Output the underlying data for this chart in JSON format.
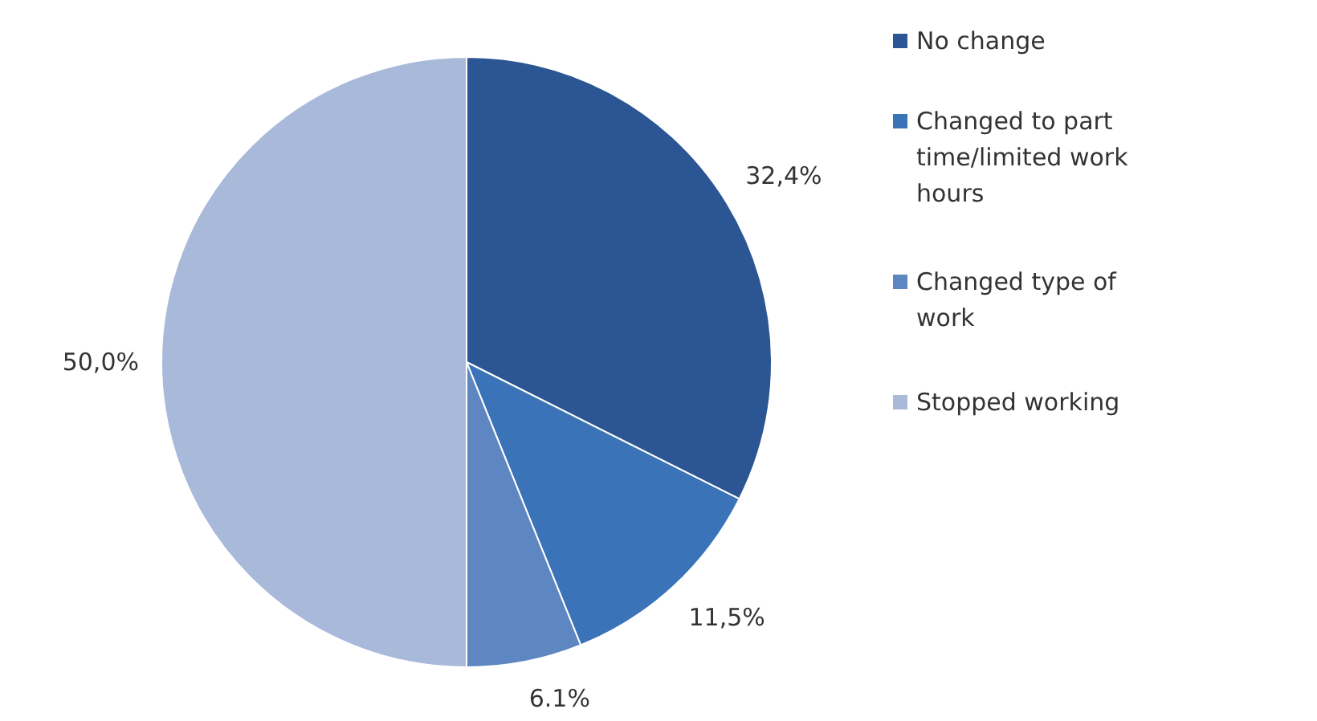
{
  "chart_data": {
    "type": "pie",
    "categories": [
      "No change",
      "Changed to part time/limited work hours",
      "Changed type of work",
      "Stopped working"
    ],
    "values": [
      32.4,
      11.5,
      6.1,
      50.0
    ],
    "value_labels": [
      "32,4%",
      "11,5%",
      "6.1%",
      "50,0%"
    ],
    "colors": [
      "#2b5593",
      "#3b73b9",
      "#5e86c1",
      "#a9b9d9"
    ],
    "legend": "right"
  }
}
